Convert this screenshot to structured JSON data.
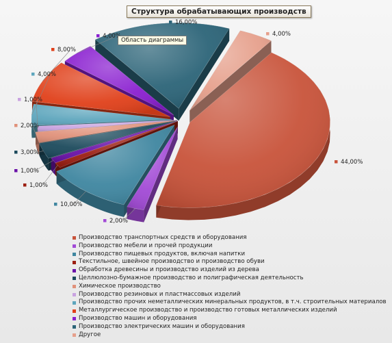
{
  "chart_data": {
    "type": "pie",
    "title": "Структура обрабатывающих производств",
    "slices": [
      {
        "label": "Производство транспортных средств и оборудования",
        "value": 44,
        "value_label": "44,00%",
        "color": "#c8533a"
      },
      {
        "label": "Производство мебели и прочей продукции",
        "value": 2,
        "value_label": "2,00%",
        "color": "#a24ad6"
      },
      {
        "label": "Производство пищевых продуктов, включая напитки",
        "value": 10,
        "value_label": "10,00%",
        "color": "#3f86a0"
      },
      {
        "label": "Текстильное, швейное производство и производство обуви",
        "value": 1,
        "value_label": "1,00%",
        "color": "#9c1f12"
      },
      {
        "label": "Обработка древесины и производство изделий из дерева",
        "value": 1,
        "value_label": "1,00%",
        "color": "#6a12a8"
      },
      {
        "label": "Целлюлозно-бумажное производство и полиграфическая деятельность",
        "value": 3,
        "value_label": "3,00%",
        "color": "#1c4a5c"
      },
      {
        "label": "Химическое производство",
        "value": 2,
        "value_label": "2,00%",
        "color": "#e0917a"
      },
      {
        "label": "Производство резиновых и пластмассовых изделий",
        "value": 1,
        "value_label": "1,00%",
        "color": "#c9a3e0"
      },
      {
        "label": "Производство прочих неметаллических минеральных продуктов, в т.ч. строительных материалов",
        "value": 4,
        "value_label": "4,00%",
        "color": "#5ea6bd"
      },
      {
        "label": "Металлургическое производство и производство готовых металлических изделий",
        "value": 8,
        "value_label": "8,00%",
        "color": "#e0401a"
      },
      {
        "label": "Производство машин и оборудования",
        "value": 4,
        "value_label": "4,00%",
        "color": "#8a1fd0"
      },
      {
        "label": "Производство электрических машин и оборудования",
        "value": 16,
        "value_label": "16,00%",
        "color": "#2c6478"
      },
      {
        "label": "Другое",
        "value": 4,
        "value_label": "4,00%",
        "color": "#e6a08c"
      }
    ],
    "legend_position": "bottom"
  },
  "tooltip": "Область диаграммы"
}
